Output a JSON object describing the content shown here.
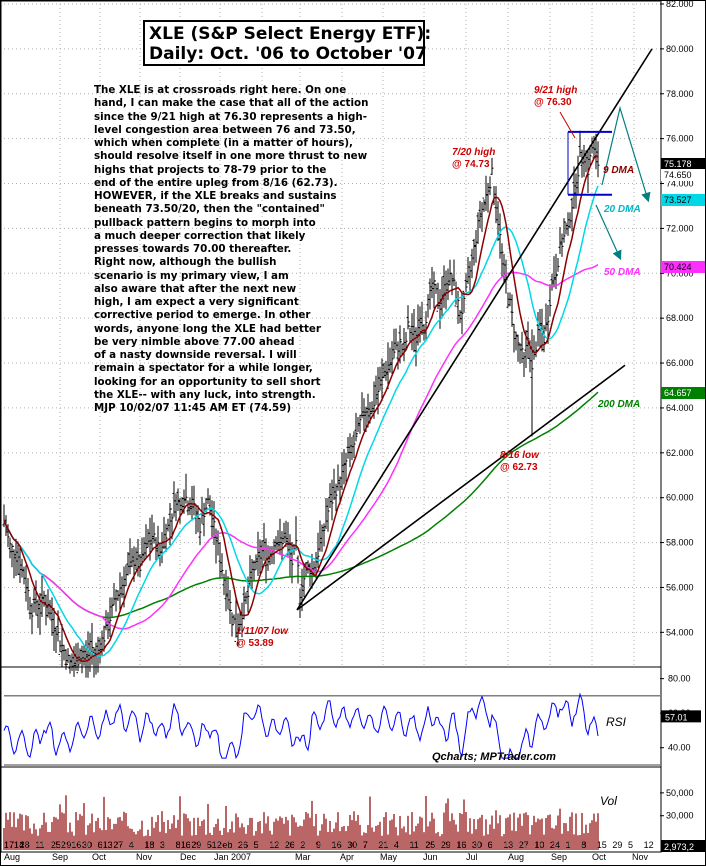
{
  "title": {
    "line1": "XLE (S&P Select Energy ETF):",
    "line2": "Daily: Oct. '06 to October '07"
  },
  "commentary": [
    "The XLE is at crossroads right here. On one",
    "hand, I can make the case that all of the action",
    "since the 9/21 high at 76.30 represents a high-",
    "level congestion area between 76 and 73.50,",
    "which when complete (in a matter of hours),",
    "should resolve itself in one more thrust to new",
    "highs that projects to 78-79 prior to the",
    "end of the entire upleg from 8/16 (62.73).",
    "HOWEVER, if the XLE breaks and sustains",
    "beneath 73.50/20, then the \"contained\"",
    "pullback pattern begins to morph into",
    "a much deeper correction that likely",
    "presses towards 70.00 thereafter.",
    "Right now, although the bullish",
    "scenario is my primary view, I am",
    "also aware that after the next new",
    "high, I am expect a very significant",
    "corrective period to emerge.  In other",
    "words, anyone long the XLE had better",
    "be very nimble above 77.00 ahead",
    "of a nasty downside reversal.  I will",
    "remain a spectator for a while longer,",
    "looking for an opportunity to sell short",
    "the XLE-- with any luck, into strength.",
    "MJP  10/02/07  11:45 AM ET (74.59)"
  ],
  "colors": {
    "ma9": "#8b0000",
    "ma20": "#00d8e8",
    "ma50": "#ff30ff",
    "ma200": "#008000",
    "annotation": "#cc0000",
    "price_bar": "#000000",
    "rsi_line": "#0000ff",
    "volume_bar": "#8b0000",
    "grid": "#b0b0b0"
  },
  "chart_data": [
    {
      "type": "line",
      "name": "price",
      "ylim": [
        52.5,
        82.0
      ],
      "yticks": [
        "82.000",
        "80.000",
        "78.000",
        "76.000",
        "74.000",
        "72.000",
        "70.000",
        "68.000",
        "66.000",
        "64.000",
        "62.000",
        "60.000",
        "58.000",
        "56.000",
        "54.000"
      ],
      "ytick_values": [
        82,
        80,
        78,
        76,
        74,
        72,
        70,
        68,
        66,
        64,
        62,
        60,
        58,
        56,
        54
      ],
      "xaxis": {
        "day_labels": [
          "1714",
          "28",
          "11",
          "252",
          "916",
          "30",
          "613",
          "27",
          "4",
          "18",
          "3",
          "816",
          "29",
          "512",
          "eb",
          "26",
          "5",
          "12",
          "26",
          "2",
          "9",
          "16",
          "30",
          "7",
          "21",
          "4",
          "11",
          "25",
          "29",
          "16",
          "30",
          "6",
          "13",
          "27",
          "10",
          "24",
          "1",
          "8",
          "15",
          "29",
          "5",
          "12"
        ],
        "month_labels": [
          "Aug",
          "Sep",
          "Oct",
          "Nov",
          "Dec",
          "Jan 2007",
          "Mar",
          "Apr",
          "May",
          "Jun",
          "Jul",
          "Aug",
          "Sep",
          "Oct",
          "Nov"
        ]
      },
      "price_path": [
        [
          0,
          59.0
        ],
        [
          4,
          58.2
        ],
        [
          8,
          57.5
        ],
        [
          12,
          57.8
        ],
        [
          16,
          57.0
        ],
        [
          20,
          56.5
        ],
        [
          24,
          55.8
        ],
        [
          28,
          55.0
        ],
        [
          32,
          55.4
        ],
        [
          36,
          55.0
        ],
        [
          40,
          55.6
        ],
        [
          44,
          55.0
        ],
        [
          48,
          54.6
        ],
        [
          52,
          54.2
        ],
        [
          56,
          53.6
        ],
        [
          60,
          53.2
        ],
        [
          64,
          52.8
        ],
        [
          68,
          52.5
        ],
        [
          72,
          52.6
        ],
        [
          76,
          53.0
        ],
        [
          80,
          52.8
        ],
        [
          84,
          53.0
        ],
        [
          88,
          53.3
        ],
        [
          92,
          52.9
        ],
        [
          96,
          53.5
        ],
        [
          100,
          53.8
        ],
        [
          104,
          54.3
        ],
        [
          108,
          55.0
        ],
        [
          112,
          55.5
        ],
        [
          116,
          56.0
        ],
        [
          120,
          56.3
        ],
        [
          124,
          56.8
        ],
        [
          128,
          57.0
        ],
        [
          132,
          57.4
        ],
        [
          136,
          56.9
        ],
        [
          140,
          57.5
        ],
        [
          144,
          58.0
        ],
        [
          148,
          58.3
        ],
        [
          152,
          58.0
        ],
        [
          156,
          57.6
        ],
        [
          160,
          58.3
        ],
        [
          164,
          58.7
        ],
        [
          168,
          59.3
        ],
        [
          172,
          60.0
        ],
        [
          176,
          59.6
        ],
        [
          180,
          60.2
        ],
        [
          184,
          59.8
        ],
        [
          188,
          59.7
        ],
        [
          192,
          59.3
        ],
        [
          196,
          58.7
        ],
        [
          200,
          59.4
        ],
        [
          204,
          59.8
        ],
        [
          208,
          59.1
        ],
        [
          212,
          58.2
        ],
        [
          216,
          57.3
        ],
        [
          220,
          56.4
        ],
        [
          224,
          55.6
        ],
        [
          228,
          54.9
        ],
        [
          232,
          54.1
        ],
        [
          236,
          54.5
        ],
        [
          240,
          55.3
        ],
        [
          244,
          55.6
        ],
        [
          248,
          56.7
        ],
        [
          252,
          57.0
        ],
        [
          256,
          57.4
        ],
        [
          260,
          57.8
        ],
        [
          264,
          57.3
        ],
        [
          268,
          57.7
        ],
        [
          272,
          58.2
        ],
        [
          276,
          57.8
        ],
        [
          280,
          58.4
        ],
        [
          284,
          57.8
        ],
        [
          288,
          57.1
        ],
        [
          292,
          57.8
        ],
        [
          296,
          55.8
        ],
        [
          300,
          56.4
        ],
        [
          304,
          56.9
        ],
        [
          308,
          56.8
        ],
        [
          312,
          57.2
        ],
        [
          316,
          57.9
        ],
        [
          320,
          58.6
        ],
        [
          324,
          59.4
        ],
        [
          328,
          59.9
        ],
        [
          332,
          60.4
        ],
        [
          336,
          60.7
        ],
        [
          340,
          61.3
        ],
        [
          344,
          61.9
        ],
        [
          348,
          62.2
        ],
        [
          352,
          62.6
        ],
        [
          356,
          63.3
        ],
        [
          360,
          63.8
        ],
        [
          364,
          64.1
        ],
        [
          368,
          63.9
        ],
        [
          372,
          64.6
        ],
        [
          376,
          64.9
        ],
        [
          380,
          65.6
        ],
        [
          384,
          65.9
        ],
        [
          388,
          66.2
        ],
        [
          392,
          66.6
        ],
        [
          396,
          66.9
        ],
        [
          400,
          66.4
        ],
        [
          404,
          67.6
        ],
        [
          408,
          67.3
        ],
        [
          412,
          67.1
        ],
        [
          416,
          68.1
        ],
        [
          420,
          67.6
        ],
        [
          424,
          68.6
        ],
        [
          428,
          69.3
        ],
        [
          432,
          69.1
        ],
        [
          436,
          68.6
        ],
        [
          440,
          69.3
        ],
        [
          444,
          69.7
        ],
        [
          448,
          69.8
        ],
        [
          452,
          69.1
        ],
        [
          456,
          68.1
        ],
        [
          460,
          68.6
        ],
        [
          464,
          69.6
        ],
        [
          468,
          70.6
        ],
        [
          472,
          71.6
        ],
        [
          476,
          72.6
        ],
        [
          480,
          73.1
        ],
        [
          484,
          73.8
        ],
        [
          488,
          74.4
        ],
        [
          492,
          73.1
        ],
        [
          496,
          71.6
        ],
        [
          500,
          70.1
        ],
        [
          504,
          69.1
        ],
        [
          508,
          68.1
        ],
        [
          512,
          67.1
        ],
        [
          516,
          66.6
        ],
        [
          520,
          66.1
        ],
        [
          524,
          67.1
        ],
        [
          528,
          65.6
        ],
        [
          532,
          66.8
        ],
        [
          536,
          67.6
        ],
        [
          540,
          67.1
        ],
        [
          544,
          68.1
        ],
        [
          548,
          69.6
        ],
        [
          552,
          70.1
        ],
        [
          556,
          71.1
        ],
        [
          560,
          71.6
        ],
        [
          564,
          72.1
        ],
        [
          568,
          73.1
        ],
        [
          572,
          74.1
        ],
        [
          576,
          75.1
        ],
        [
          580,
          75.6
        ],
        [
          584,
          74.6
        ],
        [
          588,
          75.6
        ],
        [
          592,
          75.2
        ],
        [
          596,
          74.6
        ]
      ],
      "lines": [
        {
          "name": "9 DMA",
          "last": "74.650"
        },
        {
          "name": "20 DMA",
          "last": "73.527"
        },
        {
          "name": "50 DMA",
          "last": "70.424"
        },
        {
          "name": "200 DMA",
          "last": "64.657"
        }
      ],
      "price_last": "75.178",
      "annotations": [
        {
          "line1": "9/21 high",
          "line2": "@ 76.30",
          "x_date": "2007-09-21",
          "y": 76.3
        },
        {
          "line1": "7/20 high",
          "line2": "@ 74.73",
          "x_date": "2007-07-20",
          "y": 74.73
        },
        {
          "line1": "8/16 low",
          "line2": "@ 62.73",
          "x_date": "2007-08-16",
          "y": 62.73
        },
        {
          "line1": "1/11/07 low",
          "line2": "@ 53.89",
          "x_date": "2007-01-11",
          "y": 53.89
        }
      ],
      "horizontal_levels": [
        76.3,
        73.5
      ],
      "trendlines": [
        {
          "from": [
            "2007-02-27",
            55.0
          ],
          "to": [
            "2007-11-01",
            80.0
          ]
        },
        {
          "from": [
            "2007-02-27",
            55.0
          ],
          "to": [
            "2007-11-01",
            66.0
          ]
        }
      ]
    },
    {
      "type": "line",
      "name": "RSI",
      "label": "RSI",
      "ylim": [
        30,
        85
      ],
      "yticks": [
        "80.00",
        "60.00",
        "40.00"
      ],
      "ytick_values": [
        80,
        60,
        40
      ],
      "last": "57.01",
      "reference_lines": [
        70,
        30
      ]
    },
    {
      "type": "bar",
      "name": "Vol",
      "label": "Vol",
      "yticks": [
        "50,000",
        "30,000"
      ],
      "ytick_values": [
        50000,
        30000
      ],
      "ylim": [
        0,
        70000
      ],
      "last": "2,973,2"
    }
  ],
  "labels": {
    "ma9_label": "9 DMA",
    "ma20_label": "20 DMA",
    "ma50_label": "50 DMA",
    "ma200_label": "200 DMA",
    "credit": "Qcharts; MPTrader.com"
  }
}
